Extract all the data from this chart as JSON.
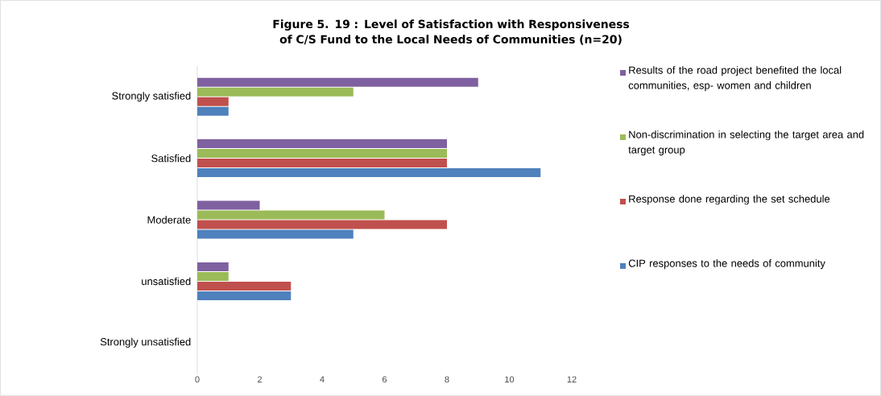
{
  "chart_data": {
    "type": "bar",
    "orientation": "horizontal",
    "title": "Figure 5. 19 : Level of Satisfaction with Responsiveness of C/S Fund to the Local Needs of Communities (n=20)",
    "categories": [
      "Strongly satisfied",
      "Satisfied",
      "Moderate",
      "unsatisfied",
      "Strongly unsatisfied"
    ],
    "series": [
      {
        "name": "Results of the road project benefited the local communities, esp- women and children",
        "color": "#7f60a0",
        "values": [
          9,
          8,
          2,
          1,
          0
        ]
      },
      {
        "name": "Non-discrimination in selecting the target area and target group",
        "color": "#9bbb59",
        "values": [
          5,
          8,
          6,
          1,
          0
        ]
      },
      {
        "name": "Response done regarding the set schedule",
        "color": "#c0504d",
        "values": [
          1,
          8,
          8,
          3,
          0
        ]
      },
      {
        "name": "CIP responses to the needs of community",
        "color": "#4f81bd",
        "values": [
          1,
          11,
          5,
          3,
          0
        ]
      }
    ],
    "xlim": [
      0,
      12
    ],
    "xticks": [
      0,
      2,
      4,
      6,
      8,
      10,
      12
    ],
    "legend": "right",
    "grid": false
  }
}
